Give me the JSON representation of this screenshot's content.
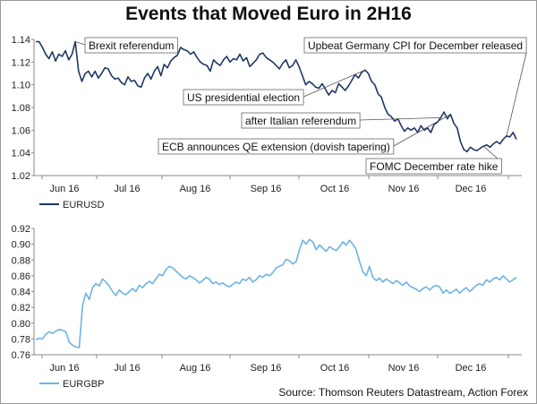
{
  "title": "Events that Moved Euro in 2H16",
  "source": "Source: Thomson Reuters Datastream, Action Forex",
  "colors": {
    "eurusd": "#1f3864",
    "eurgbp": "#6fb3e3",
    "axis": "#888888",
    "annotation_line": "#555555"
  },
  "chart_data": [
    {
      "type": "line",
      "xlabel": "",
      "ylabel": "",
      "months": [
        "Jun 16",
        "Jul 16",
        "Aug 16",
        "Sep 16",
        "Oct 16",
        "Nov 16",
        "Dec 16"
      ],
      "ylim": [
        1.02,
        1.14
      ],
      "yticks": [
        "1.14",
        "1.12",
        "1.10",
        "1.08",
        "1.06",
        "1.04",
        "1.02"
      ],
      "legend": "EURUSD",
      "series": [
        {
          "name": "EURUSD",
          "values": [
            1.138,
            1.138,
            1.133,
            1.127,
            1.123,
            1.129,
            1.121,
            1.127,
            1.125,
            1.13,
            1.122,
            1.127,
            1.138,
            1.112,
            1.103,
            1.11,
            1.112,
            1.107,
            1.112,
            1.106,
            1.11,
            1.115,
            1.114,
            1.108,
            1.105,
            1.106,
            1.102,
            1.1,
            1.107,
            1.103,
            1.104,
            1.099,
            1.098,
            1.106,
            1.11,
            1.105,
            1.112,
            1.116,
            1.108,
            1.118,
            1.115,
            1.121,
            1.124,
            1.126,
            1.133,
            1.131,
            1.13,
            1.127,
            1.129,
            1.124,
            1.12,
            1.118,
            1.117,
            1.112,
            1.122,
            1.119,
            1.117,
            1.122,
            1.125,
            1.12,
            1.123,
            1.122,
            1.127,
            1.121,
            1.124,
            1.116,
            1.119,
            1.122,
            1.127,
            1.128,
            1.124,
            1.122,
            1.12,
            1.117,
            1.114,
            1.119,
            1.122,
            1.115,
            1.117,
            1.122,
            1.116,
            1.108,
            1.1,
            1.103,
            1.101,
            1.098,
            1.097,
            1.101,
            1.096,
            1.091,
            1.095,
            1.093,
            1.101,
            1.098,
            1.095,
            1.099,
            1.104,
            1.109,
            1.106,
            1.111,
            1.113,
            1.11,
            1.103,
            1.1,
            1.092,
            1.089,
            1.08,
            1.074,
            1.072,
            1.068,
            1.07,
            1.064,
            1.059,
            1.062,
            1.06,
            1.062,
            1.058,
            1.064,
            1.06,
            1.062,
            1.058,
            1.065,
            1.067,
            1.071,
            1.076,
            1.07,
            1.074,
            1.066,
            1.062,
            1.05,
            1.043,
            1.041,
            1.045,
            1.043,
            1.042,
            1.044,
            1.046,
            1.047,
            1.045,
            1.048,
            1.05,
            1.048,
            1.052,
            1.055,
            1.054,
            1.058,
            1.052
          ]
        }
      ]
    },
    {
      "type": "line",
      "xlabel": "",
      "ylabel": "",
      "months": [
        "Jun 16",
        "Jul 16",
        "Aug 16",
        "Sep 16",
        "Oct 16",
        "Nov 16",
        "Dec 16"
      ],
      "ylim": [
        0.76,
        0.92
      ],
      "yticks": [
        "0.92",
        "0.90",
        "0.88",
        "0.86",
        "0.84",
        "0.82",
        "0.80",
        "0.78",
        "0.76"
      ],
      "legend": "EURGBP",
      "series": [
        {
          "name": "EURGBP",
          "values": [
            0.779,
            0.781,
            0.78,
            0.786,
            0.789,
            0.787,
            0.79,
            0.792,
            0.791,
            0.789,
            0.776,
            0.772,
            0.77,
            0.769,
            0.822,
            0.838,
            0.83,
            0.845,
            0.85,
            0.847,
            0.856,
            0.852,
            0.847,
            0.84,
            0.835,
            0.842,
            0.838,
            0.836,
            0.84,
            0.844,
            0.84,
            0.848,
            0.845,
            0.85,
            0.853,
            0.85,
            0.856,
            0.862,
            0.86,
            0.868,
            0.872,
            0.87,
            0.866,
            0.862,
            0.858,
            0.856,
            0.86,
            0.858,
            0.855,
            0.851,
            0.854,
            0.858,
            0.856,
            0.85,
            0.852,
            0.849,
            0.851,
            0.848,
            0.846,
            0.849,
            0.852,
            0.85,
            0.856,
            0.854,
            0.858,
            0.852,
            0.855,
            0.86,
            0.858,
            0.862,
            0.86,
            0.864,
            0.87,
            0.872,
            0.874,
            0.881,
            0.879,
            0.875,
            0.878,
            0.893,
            0.905,
            0.9,
            0.906,
            0.903,
            0.893,
            0.899,
            0.895,
            0.891,
            0.897,
            0.894,
            0.892,
            0.897,
            0.903,
            0.899,
            0.905,
            0.9,
            0.893,
            0.878,
            0.865,
            0.86,
            0.872,
            0.858,
            0.854,
            0.857,
            0.852,
            0.856,
            0.853,
            0.85,
            0.854,
            0.851,
            0.848,
            0.852,
            0.847,
            0.845,
            0.843,
            0.84,
            0.844,
            0.846,
            0.842,
            0.846,
            0.848,
            0.846,
            0.838,
            0.842,
            0.838,
            0.84,
            0.843,
            0.838,
            0.842,
            0.845,
            0.84,
            0.844,
            0.848,
            0.85,
            0.848,
            0.855,
            0.852,
            0.856,
            0.858,
            0.855,
            0.86,
            0.856,
            0.852,
            0.855,
            0.858
          ]
        }
      ]
    }
  ],
  "annotations": [
    {
      "text": "Brexit referendum",
      "index": 12
    },
    {
      "text": "US presidential election",
      "index": 100
    },
    {
      "text": "after Italian referendum",
      "index": 123
    },
    {
      "text": "ECB announces QE extension (dovish tapering)",
      "index": 126
    },
    {
      "text": "FOMC December rate hike",
      "index": 136
    },
    {
      "text": "Upbeat Germany CPI for December released",
      "index": 143
    }
  ]
}
